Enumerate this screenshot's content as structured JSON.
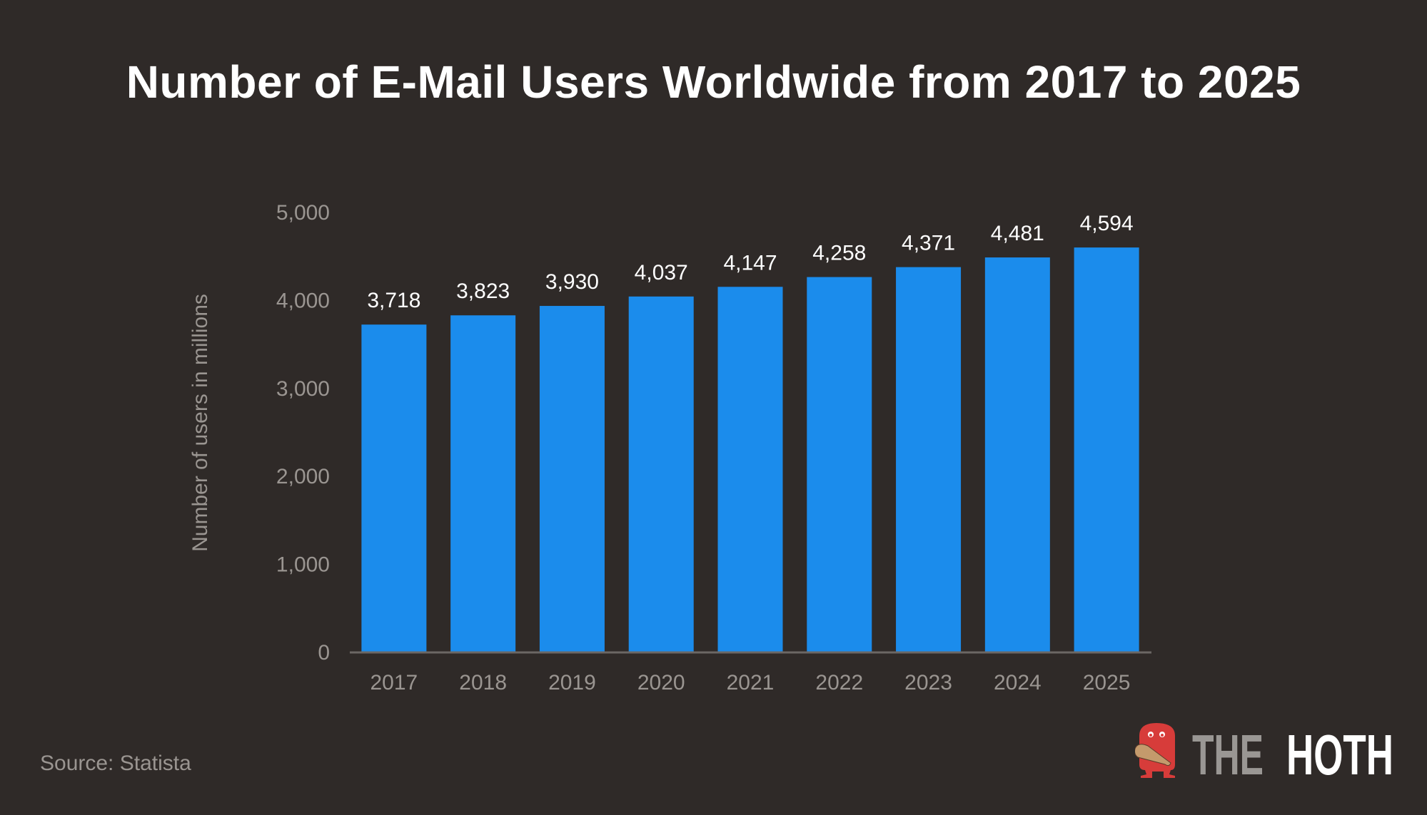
{
  "chart_data": {
    "type": "bar",
    "title": "Number of E-Mail Users Worldwide from 2017 to 2025",
    "xlabel": "",
    "ylabel": "Number of users in millions",
    "categories": [
      "2017",
      "2018",
      "2019",
      "2020",
      "2021",
      "2022",
      "2023",
      "2024",
      "2025"
    ],
    "values": [
      3718,
      3823,
      3930,
      4037,
      4147,
      4258,
      4371,
      4481,
      4594
    ],
    "data_labels": [
      "3,718",
      "3,823",
      "3,930",
      "4,037",
      "4,147",
      "4,258",
      "4,371",
      "4,481",
      "4,594"
    ],
    "ylim": [
      0,
      5000
    ],
    "yticks": [
      0,
      1000,
      2000,
      3000,
      4000,
      5000
    ],
    "ytick_labels": [
      "0",
      "1,000",
      "2,000",
      "3,000",
      "4,000",
      "5,000"
    ],
    "grid": false,
    "legend": "none",
    "bar_color": "#1b8cec",
    "background": "#2f2a28"
  },
  "source": "Source: Statista",
  "logo": {
    "text_part1": "THE",
    "text_part2": "HOTH",
    "mascot": "red-monster-with-club-icon"
  }
}
